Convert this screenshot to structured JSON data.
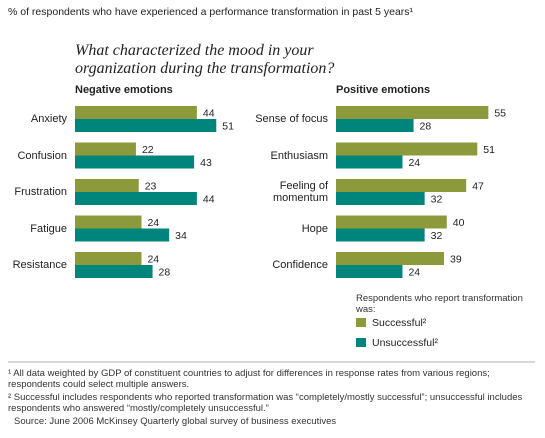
{
  "header": {
    "note": "% of respondents who have experienced a performance transformation in past 5 years¹",
    "question": "What characterized the mood in your organization during the transformation?"
  },
  "chart_data": [
    {
      "type": "bar",
      "orientation": "horizontal",
      "title": "Negative emotions",
      "categories": [
        "Anxiety",
        "Confusion",
        "Frustration",
        "Fatigue",
        "Resistance"
      ],
      "series": [
        {
          "color": "#8c9a3b",
          "values": [
            44,
            22,
            23,
            24,
            24
          ]
        },
        {
          "color": "#00857d",
          "values": [
            51,
            43,
            44,
            34,
            28
          ]
        }
      ]
    },
    {
      "type": "bar",
      "orientation": "horizontal",
      "title": "Positive emotions",
      "categories": [
        "Sense of focus",
        "Enthusiasm",
        "Feeling of momentum",
        "Hope",
        "Confidence"
      ],
      "series": [
        {
          "name": "Successful²",
          "color": "#8c9a3b",
          "values": [
            55,
            51,
            47,
            40,
            39
          ]
        },
        {
          "name": "Unsuccessful²",
          "color": "#00857d",
          "values": [
            28,
            24,
            32,
            32,
            24
          ]
        }
      ],
      "legend_title": "Respondents who report transformation was:"
    }
  ],
  "footnotes": [
    "¹ All data weighted by GDP of constituent countries to adjust for differences in response rates from various regions; respondents could select multiple answers.",
    "² Successful includes respondents who reported transformation was “completely/mostly successful”; unsuccessful includes respondents who answered “mostly/completely unsuccessful.”",
    "Source: June 2006 McKinsey Quarterly global survey of business executives"
  ]
}
